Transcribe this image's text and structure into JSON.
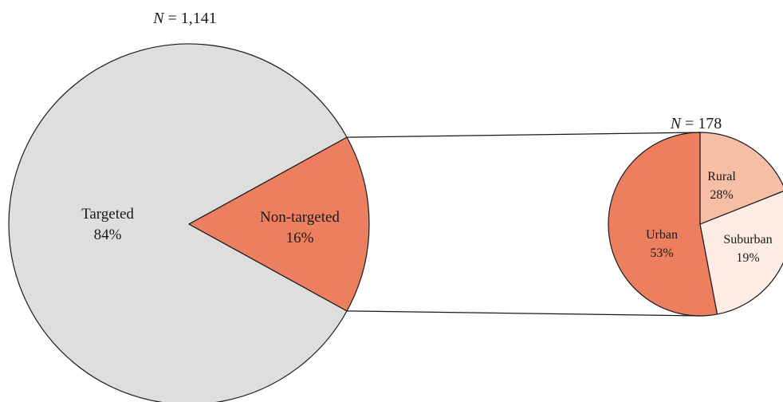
{
  "chart_data": [
    {
      "type": "pie",
      "title": "N = 1,141",
      "title_var": "N",
      "title_rest": " = 1,141",
      "slices": [
        {
          "label": "Targeted",
          "value": 84,
          "value_label": "84%",
          "color": "#dedede"
        },
        {
          "label": "Non-targeted",
          "value": 16,
          "value_label": "16%",
          "color": "#ec7f60"
        }
      ]
    },
    {
      "type": "pie",
      "title": "N = 178",
      "title_var": "N",
      "title_rest": " = 178",
      "breakout_of": "Non-targeted",
      "slices": [
        {
          "label": "Urban",
          "value": 53,
          "value_label": "53%",
          "color": "#ec7f60"
        },
        {
          "label": "Rural",
          "value": 28,
          "value_label": "28%",
          "color": "#fdece4"
        },
        {
          "label": "Suburban",
          "value": 19,
          "value_label": "19%",
          "color": "#f5bea5"
        }
      ]
    }
  ],
  "colors": {
    "outline": "#1a1a1a",
    "connector": "#1a1a1a"
  }
}
